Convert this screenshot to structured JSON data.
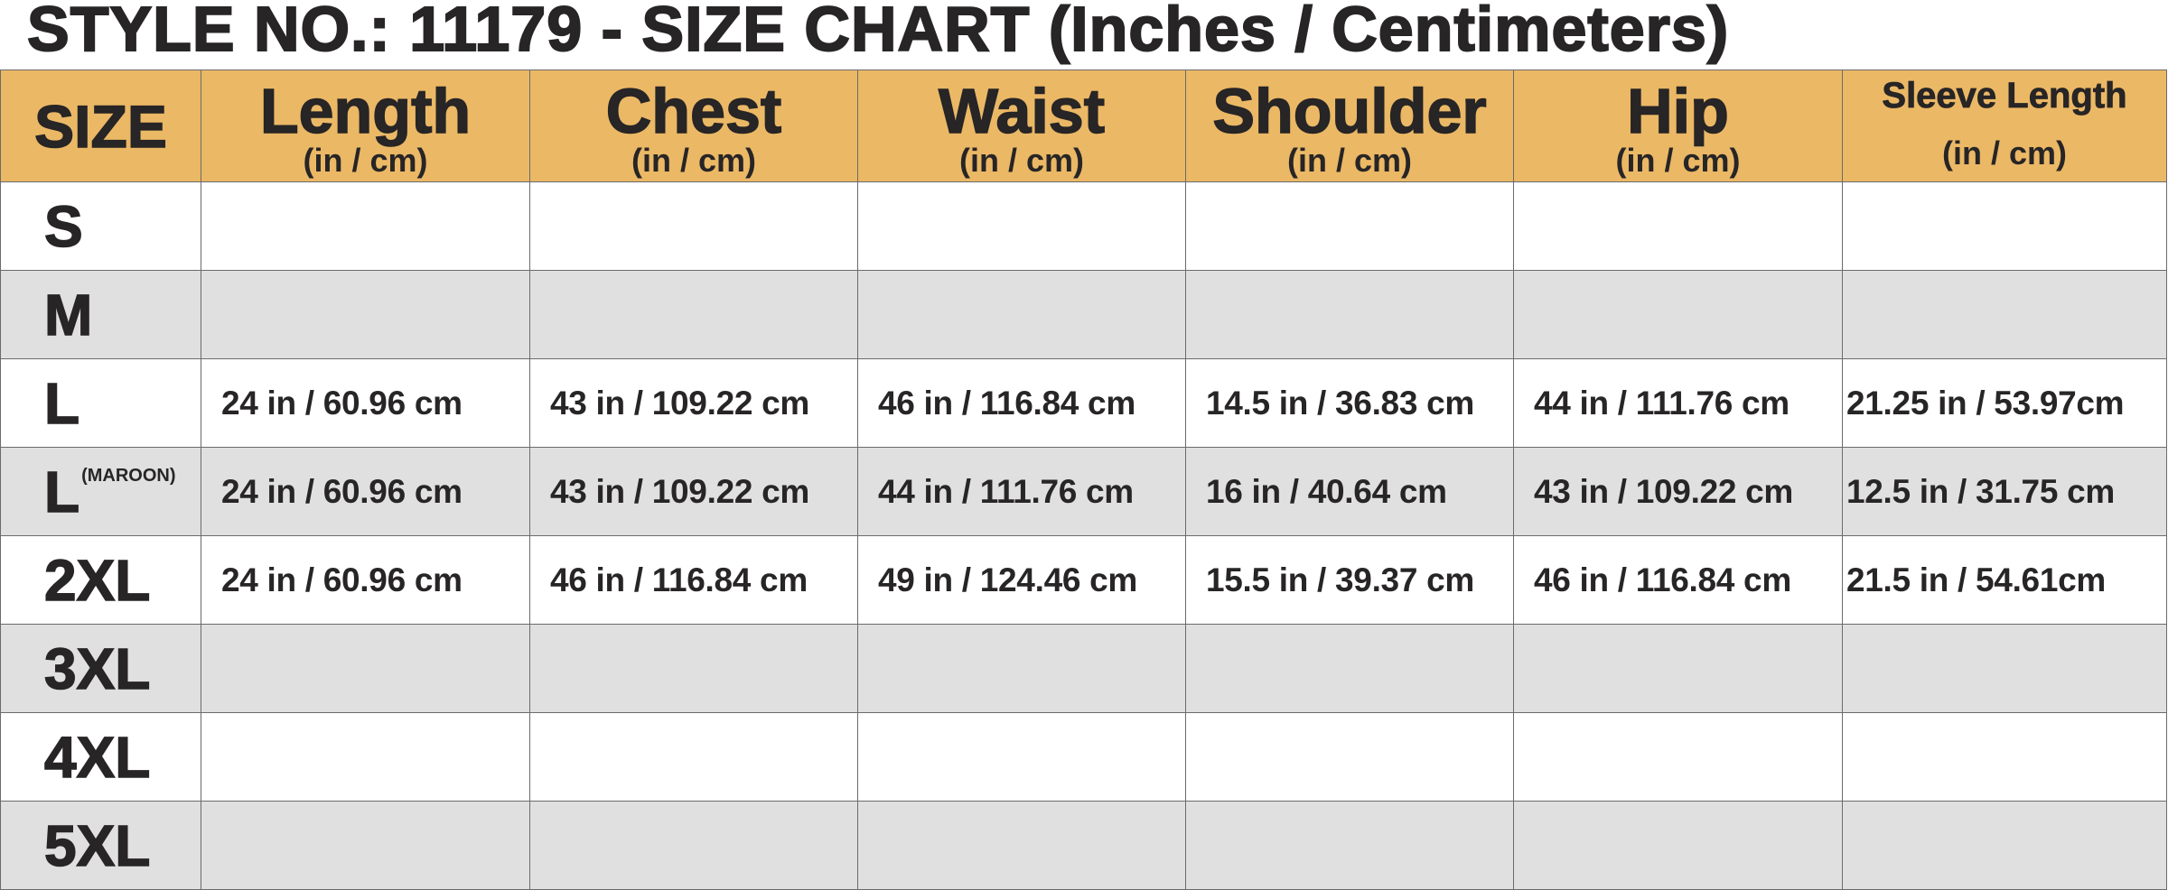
{
  "title": "STYLE NO.: 11179 - SIZE CHART (Inches / Centimeters)",
  "colors": {
    "header_bg": "#EBB866",
    "alt_row_bg": "#E0E0E0",
    "text": "#272525"
  },
  "columns": [
    {
      "name": "SIZE",
      "unit": ""
    },
    {
      "name": "Length",
      "unit": "(in / cm)"
    },
    {
      "name": "Chest",
      "unit": "(in / cm)"
    },
    {
      "name": "Waist",
      "unit": "(in / cm)"
    },
    {
      "name": "Shoulder",
      "unit": "(in / cm)"
    },
    {
      "name": "Hip",
      "unit": "(in / cm)"
    },
    {
      "name": "Sleeve Length",
      "unit": "(in / cm)"
    }
  ],
  "rows": [
    {
      "size": "S",
      "note": "",
      "values": [
        "",
        "",
        "",
        "",
        "",
        ""
      ]
    },
    {
      "size": "M",
      "note": "",
      "values": [
        "",
        "",
        "",
        "",
        "",
        ""
      ]
    },
    {
      "size": "L",
      "note": "",
      "values": [
        "24 in / 60.96 cm",
        "43 in / 109.22 cm",
        "46 in / 116.84 cm",
        "14.5 in / 36.83 cm",
        "44 in / 111.76 cm",
        "21.25 in / 53.97cm"
      ]
    },
    {
      "size": "L",
      "note": "(MAROON)",
      "values": [
        "24 in / 60.96 cm",
        "43 in / 109.22 cm",
        "44 in / 111.76 cm",
        "16 in / 40.64 cm",
        "43 in / 109.22 cm",
        "12.5 in / 31.75 cm"
      ]
    },
    {
      "size": "2XL",
      "note": "",
      "values": [
        "24 in / 60.96 cm",
        "46 in / 116.84 cm",
        "49 in / 124.46 cm",
        "15.5 in / 39.37 cm",
        "46 in / 116.84 cm",
        "21.5 in / 54.61cm"
      ]
    },
    {
      "size": "3XL",
      "note": "",
      "values": [
        "",
        "",
        "",
        "",
        "",
        ""
      ]
    },
    {
      "size": "4XL",
      "note": "",
      "values": [
        "",
        "",
        "",
        "",
        "",
        ""
      ]
    },
    {
      "size": "5XL",
      "note": "",
      "values": [
        "",
        "",
        "",
        "",
        "",
        ""
      ]
    }
  ]
}
